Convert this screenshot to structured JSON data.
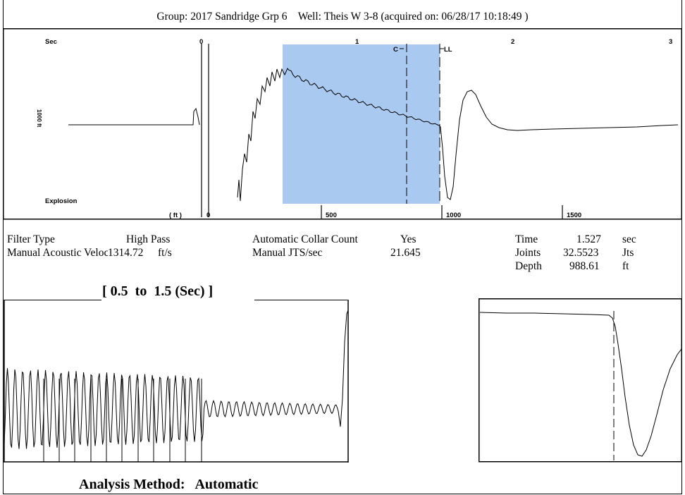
{
  "header": {
    "group": "Group: 2017 Sandridge Grp 6",
    "well": "Well: Theis W 3-8 (acquired on: 06/28/17 10:18:49 )"
  },
  "main_plot": {
    "sec_label": "Sec",
    "explosion_label": "Explosion",
    "ft_label": "( ft )",
    "vertical_label": "1000 ft",
    "marker_c": "C",
    "marker_ll": "LL",
    "highlight_color": "#aac9f0"
  },
  "info": {
    "filter_type_label": "Filter Type",
    "filter_type_value": "High Pass",
    "manual_velocity_label": "Manual Acoustic Veloc",
    "manual_velocity_value": "1314.72",
    "manual_velocity_unit": "ft/s",
    "collar_count_label": "Automatic Collar Count",
    "collar_count_value": "Yes",
    "jts_label": "Manual JTS/sec",
    "jts_value": "21.645",
    "time_label": "Time",
    "time_value": "1.527",
    "time_unit": "sec",
    "joints_label": "Joints",
    "joints_value": "32.5523",
    "joints_unit": "Jts",
    "depth_label": "Depth",
    "depth_value": "988.61",
    "depth_unit": "ft"
  },
  "window_title": "[ 0.5  to  1.5 (Sec) ]",
  "analysis_method": "Analysis Method:   Automatic",
  "chart_data": {
    "type": "line",
    "x_top_ticks": [
      "0",
      "1",
      "2",
      "3"
    ],
    "x_bottom_ticks": [
      "0",
      "500",
      "1000",
      "1500"
    ],
    "x_top_unit": "Sec",
    "x_bottom_unit": "( ft )",
    "highlight_sec_range": [
      0.5,
      1.5
    ],
    "collar_marker_sec": 1.36,
    "liquid_level_marker_sec": 1.527,
    "liquid_level_depth_ft": 988.61
  }
}
